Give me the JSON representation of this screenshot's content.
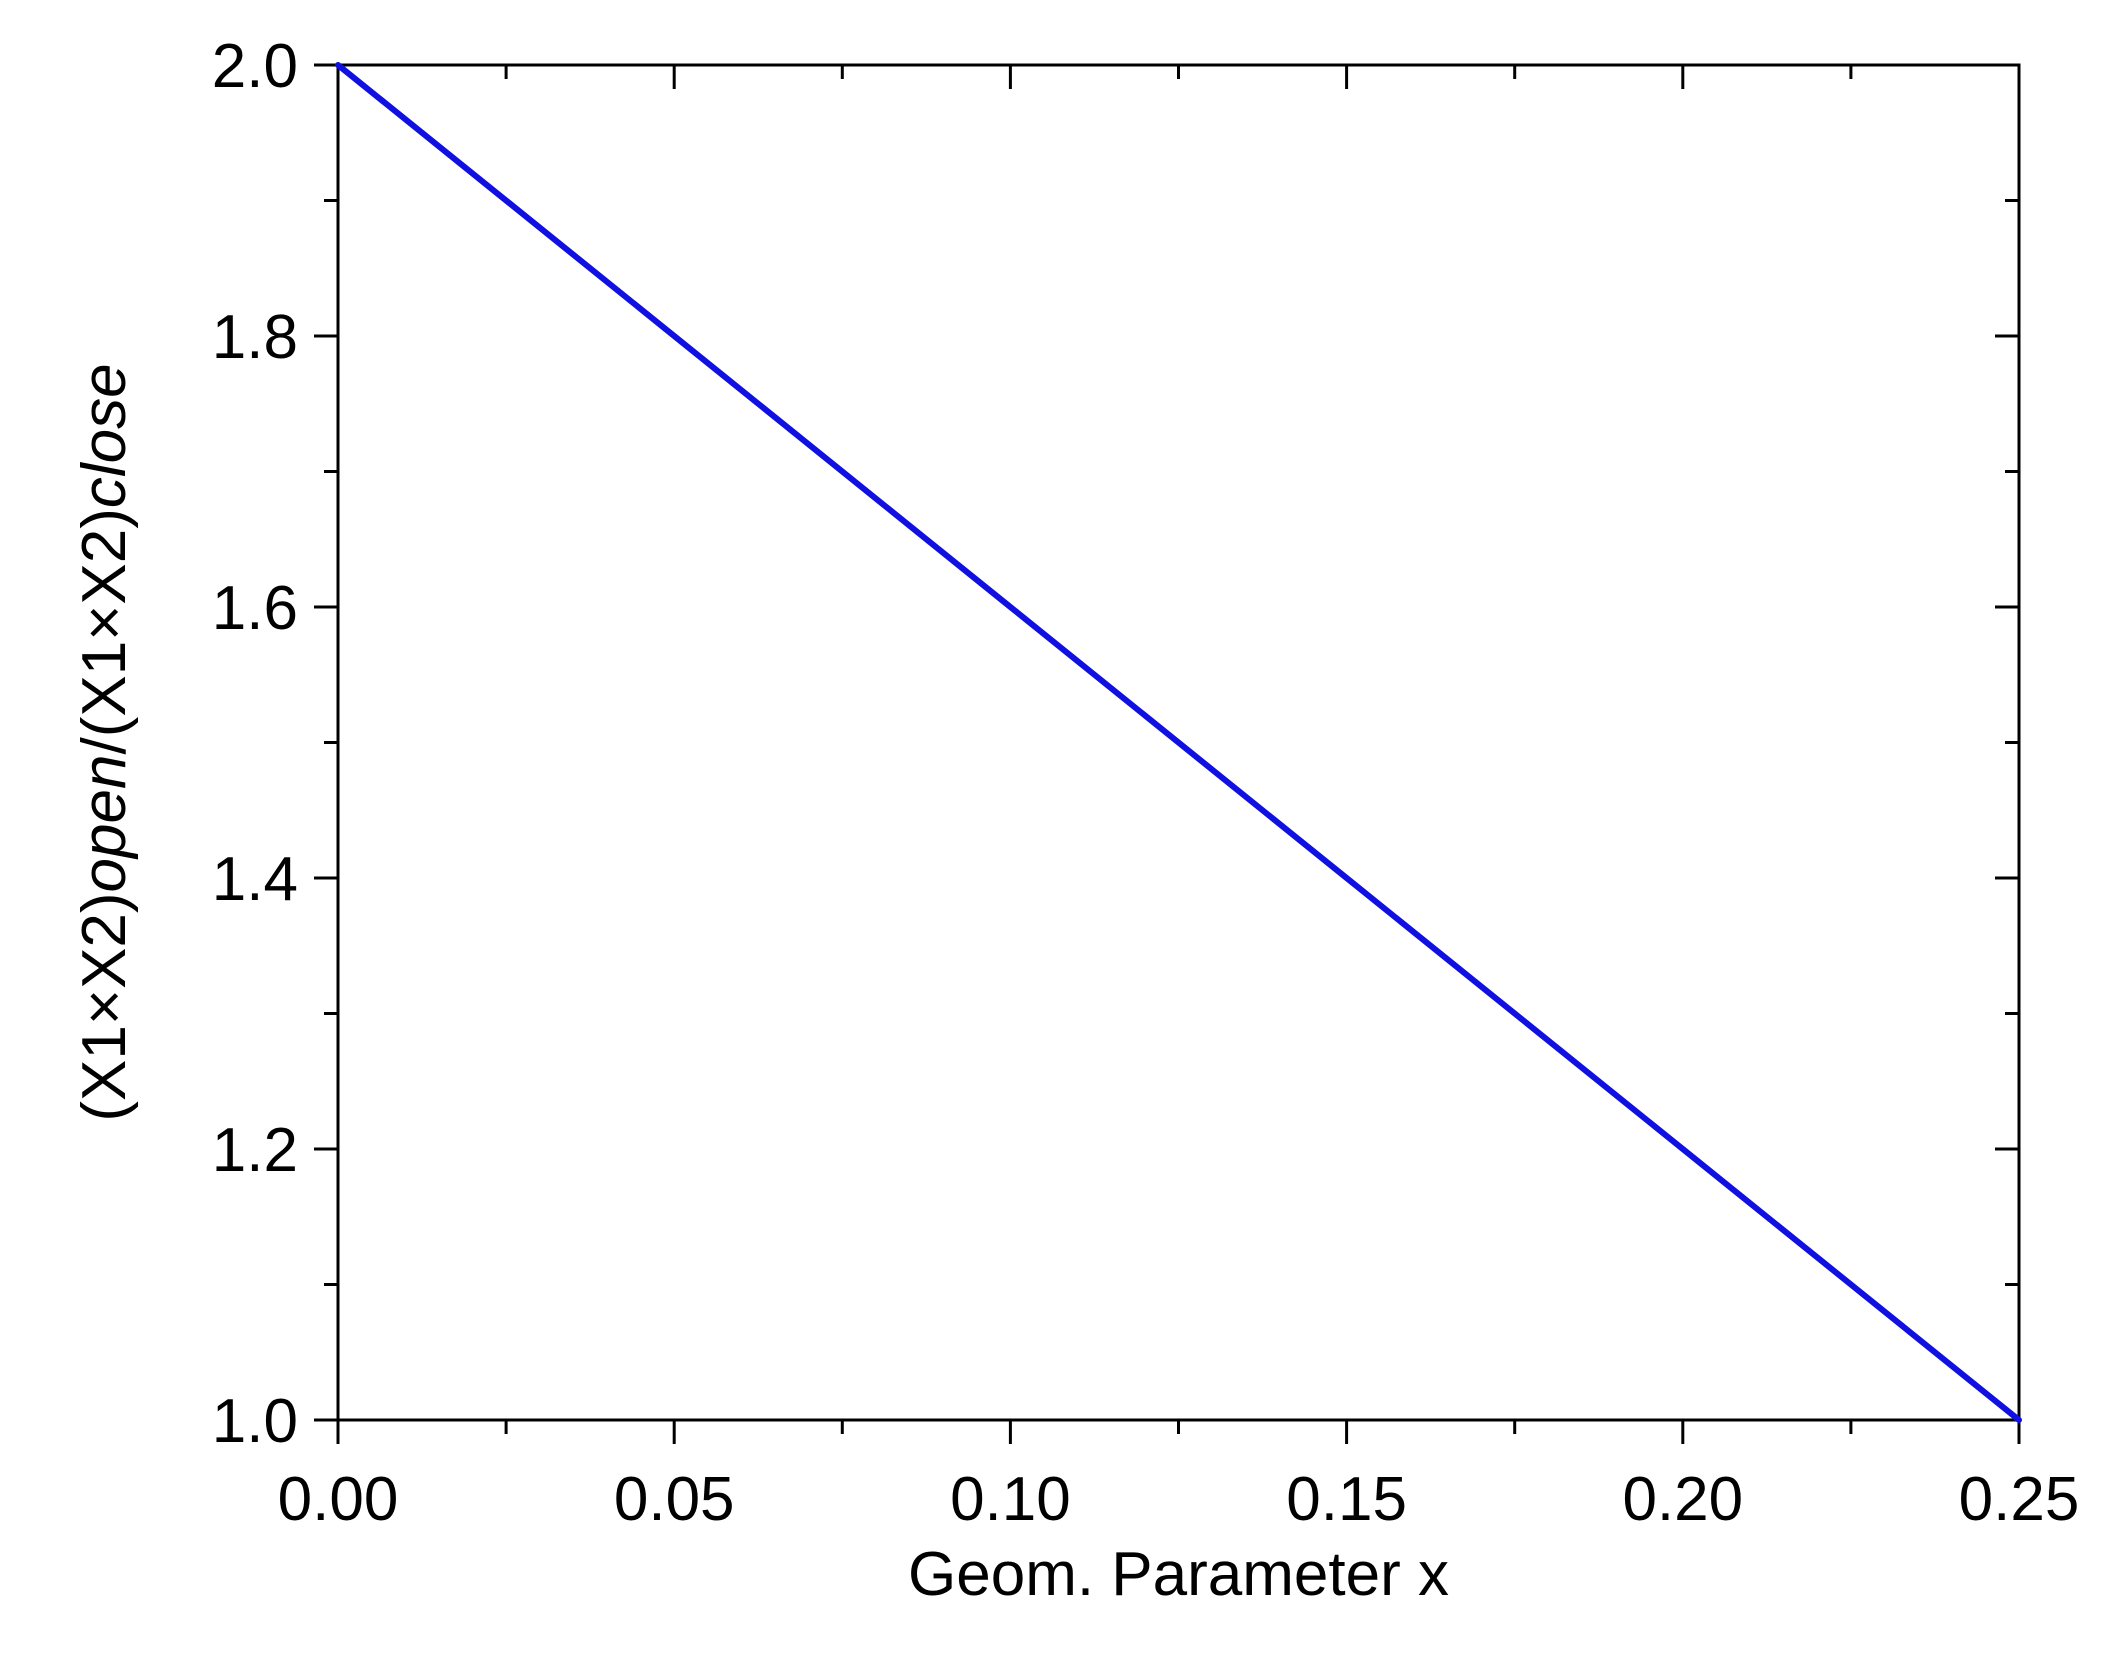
{
  "chart_data": {
    "type": "line",
    "title": "",
    "xlabel": "Geom. Parameter x",
    "ylabel": {
      "segments": [
        {
          "text": "(X1×X2)",
          "italic": false
        },
        {
          "text": "open",
          "italic": true
        },
        {
          "text": "/(X1×X2)",
          "italic": false
        },
        {
          "text": "close",
          "italic": true
        }
      ]
    },
    "xlim": [
      0.0,
      0.25
    ],
    "ylim": [
      1.0,
      2.0
    ],
    "x_ticks": [
      0.0,
      0.05,
      0.1,
      0.15,
      0.2,
      0.25
    ],
    "x_tick_labels": [
      "0.00",
      "0.05",
      "0.10",
      "0.15",
      "0.20",
      "0.25"
    ],
    "x_minor_ticks": [
      0.025,
      0.075,
      0.125,
      0.175,
      0.225
    ],
    "y_ticks": [
      1.0,
      1.2,
      1.4,
      1.6,
      1.8,
      2.0
    ],
    "y_tick_labels": [
      "1.0",
      "1.2",
      "1.4",
      "1.6",
      "1.8",
      "2.0"
    ],
    "y_minor_ticks": [
      1.1,
      1.3,
      1.5,
      1.7,
      1.9
    ],
    "grid": false,
    "legend": "none",
    "series": [
      {
        "color": "#1010e0",
        "x": [
          0.0,
          0.05,
          0.1,
          0.15,
          0.2,
          0.25
        ],
        "y": [
          2.0,
          1.8,
          1.6,
          1.4,
          1.2,
          1.0
        ]
      }
    ]
  }
}
